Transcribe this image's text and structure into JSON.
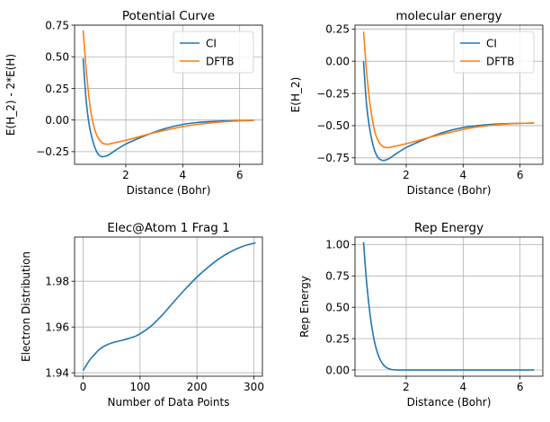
{
  "chart_data": [
    {
      "type": "line",
      "title": "Potential Curve",
      "xlabel": "Distance (Bohr)",
      "ylabel": "E(H_2) - 2*E(H)",
      "xlim": [
        0.2,
        6.8
      ],
      "ylim": [
        -0.35,
        0.75
      ],
      "xticks": [
        2,
        4,
        6
      ],
      "xtick_labels": [
        "2",
        "4",
        "6"
      ],
      "yticks": [
        -0.25,
        0.0,
        0.25,
        0.5,
        0.75
      ],
      "ytick_labels": [
        "−0.25",
        "0.00",
        "0.25",
        "0.50",
        "0.75"
      ],
      "grid": true,
      "legend": "top-right",
      "series": [
        {
          "name": "CI",
          "color": "#1f77b4",
          "x": [
            0.5,
            0.6,
            0.7,
            0.8,
            0.9,
            1.0,
            1.1,
            1.2,
            1.3,
            1.4,
            1.5,
            1.7,
            2.0,
            2.5,
            3.0,
            3.5,
            4.0,
            4.5,
            5.0,
            5.5,
            6.0,
            6.5
          ],
          "y": [
            0.49,
            0.17,
            -0.02,
            -0.13,
            -0.21,
            -0.26,
            -0.285,
            -0.29,
            -0.285,
            -0.275,
            -0.26,
            -0.23,
            -0.19,
            -0.14,
            -0.095,
            -0.06,
            -0.035,
            -0.02,
            -0.012,
            -0.007,
            -0.004,
            -0.002
          ]
        },
        {
          "name": "DFTB",
          "color": "#ff7f0e",
          "x": [
            0.5,
            0.6,
            0.7,
            0.8,
            0.9,
            1.0,
            1.1,
            1.2,
            1.3,
            1.4,
            1.5,
            1.7,
            2.0,
            2.5,
            3.0,
            3.5,
            4.0,
            4.5,
            5.0,
            5.5,
            6.0,
            6.5
          ],
          "y": [
            0.71,
            0.42,
            0.19,
            0.03,
            -0.07,
            -0.13,
            -0.165,
            -0.185,
            -0.19,
            -0.19,
            -0.185,
            -0.175,
            -0.16,
            -0.13,
            -0.1,
            -0.075,
            -0.052,
            -0.035,
            -0.022,
            -0.013,
            -0.007,
            -0.004
          ]
        }
      ]
    },
    {
      "type": "line",
      "title": "molecular energy",
      "xlabel": "Distance (Bohr)",
      "ylabel": "E(H_2)",
      "xlim": [
        0.2,
        6.8
      ],
      "ylim": [
        -0.8,
        0.28
      ],
      "xticks": [
        2,
        4,
        6
      ],
      "xtick_labels": [
        "2",
        "4",
        "6"
      ],
      "yticks": [
        -0.75,
        -0.5,
        -0.25,
        0.0,
        0.25
      ],
      "ytick_labels": [
        "−0.75",
        "−0.50",
        "−0.25",
        "0.00",
        "0.25"
      ],
      "grid": true,
      "legend": "top-right",
      "series": [
        {
          "name": "CI",
          "color": "#1f77b4",
          "x": [
            0.5,
            0.6,
            0.7,
            0.8,
            0.9,
            1.0,
            1.1,
            1.2,
            1.3,
            1.4,
            1.5,
            1.7,
            2.0,
            2.5,
            3.0,
            3.5,
            4.0,
            4.5,
            5.0,
            5.5,
            6.0,
            6.5
          ],
          "y": [
            0.0,
            -0.32,
            -0.5,
            -0.62,
            -0.7,
            -0.745,
            -0.765,
            -0.77,
            -0.765,
            -0.755,
            -0.74,
            -0.71,
            -0.67,
            -0.62,
            -0.575,
            -0.54,
            -0.515,
            -0.5,
            -0.49,
            -0.485,
            -0.482,
            -0.48
          ]
        },
        {
          "name": "DFTB",
          "color": "#ff7f0e",
          "x": [
            0.5,
            0.6,
            0.7,
            0.8,
            0.9,
            1.0,
            1.1,
            1.2,
            1.3,
            1.4,
            1.5,
            1.7,
            2.0,
            2.5,
            3.0,
            3.5,
            4.0,
            4.5,
            5.0,
            5.5,
            6.0,
            6.5
          ],
          "y": [
            0.23,
            -0.06,
            -0.28,
            -0.44,
            -0.55,
            -0.61,
            -0.645,
            -0.665,
            -0.67,
            -0.67,
            -0.665,
            -0.655,
            -0.64,
            -0.61,
            -0.58,
            -0.555,
            -0.53,
            -0.51,
            -0.497,
            -0.488,
            -0.482,
            -0.48
          ]
        }
      ]
    },
    {
      "type": "line",
      "title": "Elec@Atom 1 Frag 1",
      "xlabel": "Number of Data Points",
      "ylabel": "Electron Distribution",
      "xlim": [
        -15,
        315
      ],
      "ylim": [
        1.9385,
        1.9993
      ],
      "xticks": [
        0,
        100,
        200,
        300
      ],
      "xtick_labels": [
        "0",
        "100",
        "200",
        "300"
      ],
      "yticks": [
        1.94,
        1.96,
        1.98
      ],
      "ytick_labels": [
        "1.94",
        "1.96",
        "1.98"
      ],
      "grid": true,
      "series": [
        {
          "name": "",
          "color": "#1f77b4",
          "x": [
            0,
            10,
            20,
            30,
            40,
            50,
            60,
            70,
            80,
            90,
            100,
            120,
            140,
            160,
            180,
            200,
            220,
            240,
            260,
            280,
            303
          ],
          "y": [
            1.941,
            1.945,
            1.948,
            1.9505,
            1.952,
            1.953,
            1.9537,
            1.9543,
            1.955,
            1.9558,
            1.957,
            1.9605,
            1.9655,
            1.9712,
            1.9767,
            1.9818,
            1.9862,
            1.99,
            1.993,
            1.9952,
            1.9968
          ]
        }
      ]
    },
    {
      "type": "line",
      "title": "Rep Energy",
      "xlabel": "Distance (Bohr)",
      "ylabel": "Rep Energy",
      "xlim": [
        0.2,
        6.8
      ],
      "ylim": [
        -0.05,
        1.06
      ],
      "xticks": [
        2,
        4,
        6
      ],
      "xtick_labels": [
        "2",
        "4",
        "6"
      ],
      "yticks": [
        0.0,
        0.25,
        0.5,
        0.75,
        1.0
      ],
      "ytick_labels": [
        "0.00",
        "0.25",
        "0.50",
        "0.75",
        "1.00"
      ],
      "grid": true,
      "series": [
        {
          "name": "",
          "color": "#1f77b4",
          "x": [
            0.5,
            0.6,
            0.7,
            0.8,
            0.9,
            1.0,
            1.1,
            1.2,
            1.3,
            1.4,
            1.5,
            1.6,
            1.7,
            2.0,
            3.0,
            4.0,
            5.0,
            6.0,
            6.5
          ],
          "y": [
            1.02,
            0.72,
            0.5,
            0.33,
            0.21,
            0.13,
            0.075,
            0.04,
            0.02,
            0.009,
            0.003,
            0.001,
            0.0,
            0.0,
            0.0,
            0.0,
            0.0,
            0.0,
            0.0
          ]
        }
      ]
    }
  ]
}
